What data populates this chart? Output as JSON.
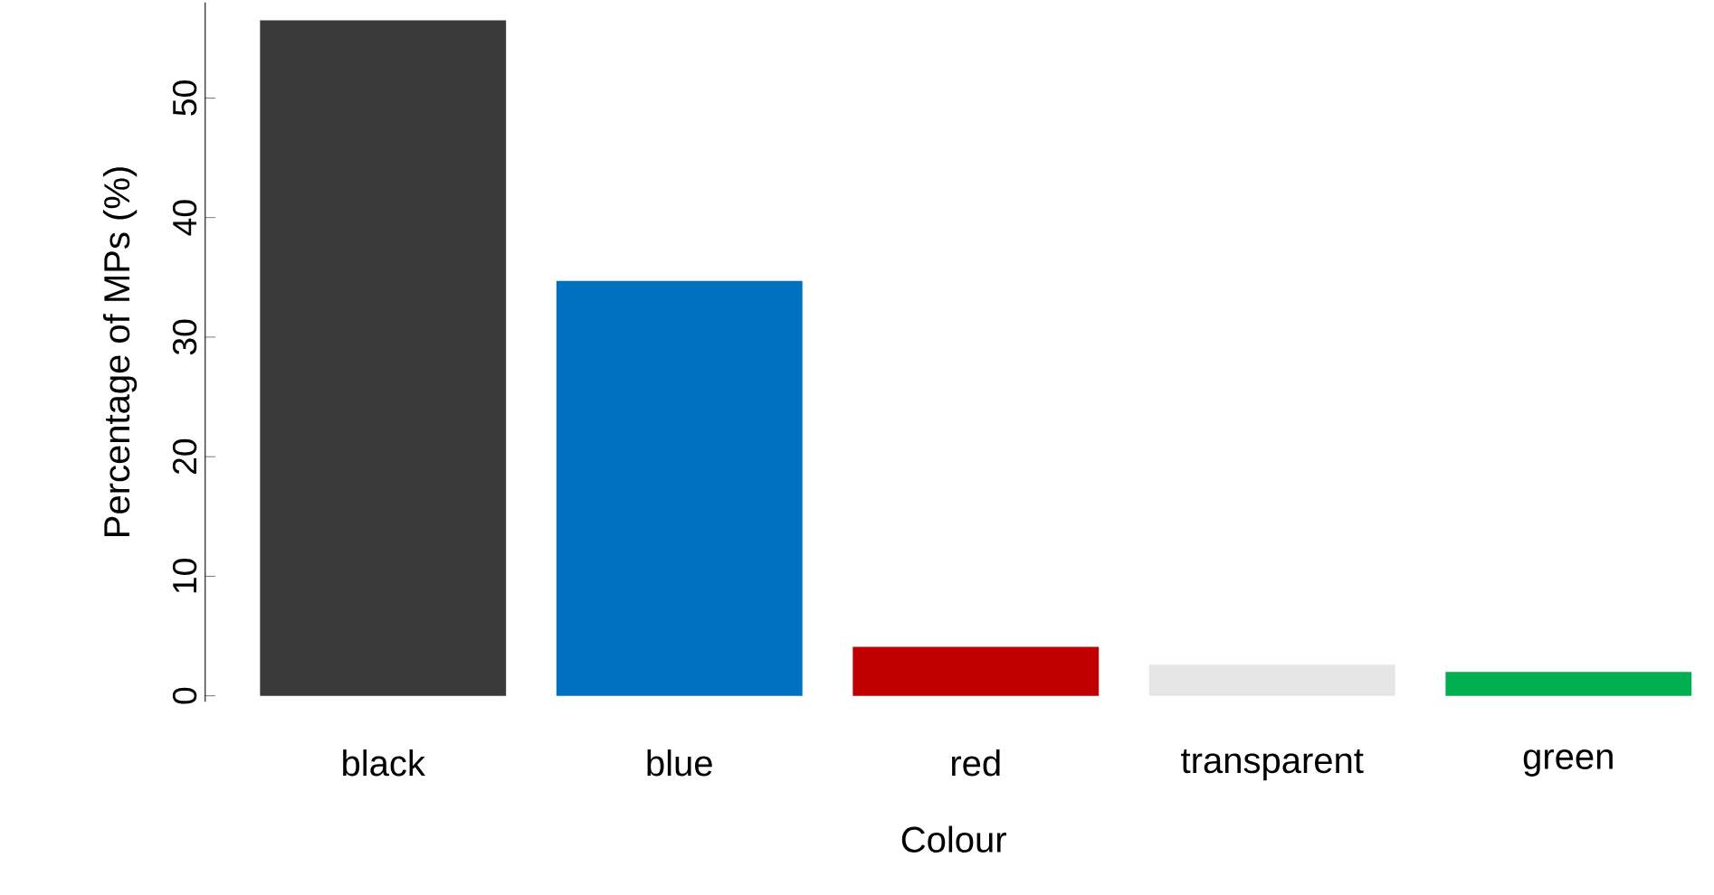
{
  "chart_data": {
    "type": "bar",
    "xlabel": "Colour",
    "ylabel": "Percentage of MPs (%)",
    "categories": [
      "black",
      "blue",
      "red",
      "transparent",
      "green"
    ],
    "values": [
      56.5,
      34.7,
      4.1,
      2.6,
      2.0
    ],
    "colors": [
      "#3a3a3a",
      "#0070c0",
      "#c00000",
      "#e6e6e6",
      "#00b050"
    ],
    "ylim": [
      -0.5,
      58
    ],
    "yticks": [
      0,
      10,
      20,
      30,
      40,
      50
    ]
  }
}
